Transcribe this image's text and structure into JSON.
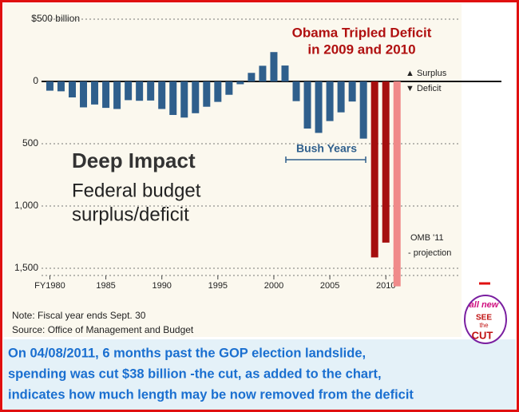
{
  "chart_data": {
    "type": "bar",
    "title": "Deep Impact",
    "subtitle": [
      "Federal budget",
      "surplus/deficit"
    ],
    "x": [
      1980,
      1981,
      1982,
      1983,
      1984,
      1985,
      1986,
      1987,
      1988,
      1989,
      1990,
      1991,
      1992,
      1993,
      1994,
      1995,
      1996,
      1997,
      1998,
      1999,
      2000,
      2001,
      2002,
      2003,
      2004,
      2005,
      2006,
      2007,
      2008,
      2009,
      2010,
      2011
    ],
    "values": [
      -74,
      -79,
      -128,
      -208,
      -185,
      -212,
      -221,
      -150,
      -155,
      -153,
      -221,
      -269,
      -290,
      -255,
      -203,
      -164,
      -107,
      -22,
      69,
      126,
      236,
      128,
      -158,
      -378,
      -413,
      -318,
      -248,
      -161,
      -459,
      -1413,
      -1294,
      -1645
    ],
    "colors": [
      "#2f5f8c",
      "#2f5f8c",
      "#2f5f8c",
      "#2f5f8c",
      "#2f5f8c",
      "#2f5f8c",
      "#2f5f8c",
      "#2f5f8c",
      "#2f5f8c",
      "#2f5f8c",
      "#2f5f8c",
      "#2f5f8c",
      "#2f5f8c",
      "#2f5f8c",
      "#2f5f8c",
      "#2f5f8c",
      "#2f5f8c",
      "#2f5f8c",
      "#2f5f8c",
      "#2f5f8c",
      "#2f5f8c",
      "#2f5f8c",
      "#2f5f8c",
      "#2f5f8c",
      "#2f5f8c",
      "#2f5f8c",
      "#2f5f8c",
      "#2f5f8c",
      "#2f5f8c",
      "#a50f0f",
      "#a50f0f",
      "#f08a8a"
    ],
    "xlim": [
      1978.4,
      2016.9
    ],
    "xticks": [
      {
        "value": 1980,
        "label": "FY1980"
      },
      1985,
      1990,
      1995,
      2000,
      2005,
      2010
    ],
    "ylim": [
      -1654,
      558
    ],
    "yticks": [
      {
        "value": 500,
        "label": "$500 billion"
      },
      0,
      {
        "value": -500,
        "label": "500"
      },
      {
        "value": -1000,
        "label": "1,000"
      },
      {
        "value": -1500,
        "label": "1,500"
      }
    ],
    "grid": true,
    "annotations": {
      "obama": [
        "Obama Tripled Deficit",
        "in 2009 and 2010"
      ],
      "surplus": "▲ Surplus",
      "deficit": "▼ Deficit",
      "bush": "Bush Years",
      "omb": [
        "OMB '11",
        "- projection"
      ],
      "note": "Note: Fiscal year ends Sept. 30",
      "source": "Source: Office of Management and Budget"
    }
  },
  "caption": [
    "On 04/08/2011, 6 months past the GOP election landslide,",
    "spending was cut $38 billion  -the cut, as added to the chart,",
    "indicates how much length may be now removed from the deficit"
  ],
  "logo": [
    "all new",
    "SEE",
    "the",
    "CUT"
  ]
}
